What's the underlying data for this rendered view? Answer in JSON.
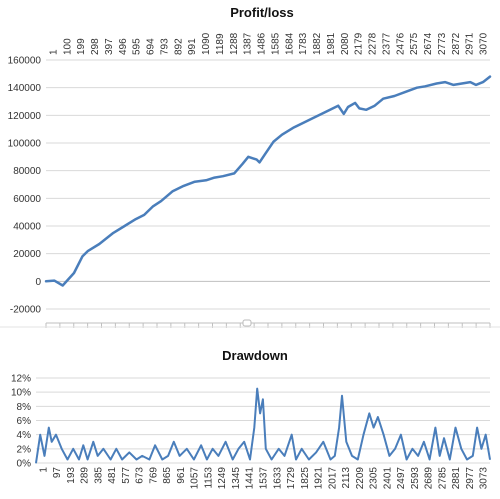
{
  "chart_data": [
    {
      "type": "line",
      "title": "Profit/loss",
      "xlabel": "",
      "ylabel": "",
      "x_range": [
        1,
        3160
      ],
      "ylim": [
        -20000,
        160000
      ],
      "y_ticks": [
        "-20000",
        "0",
        "20000",
        "40000",
        "60000",
        "80000",
        "100000",
        "120000",
        "140000",
        "160000"
      ],
      "y_tick_values": [
        -20000,
        0,
        20000,
        40000,
        60000,
        80000,
        100000,
        120000,
        140000,
        160000
      ],
      "x_ticks": [
        "1",
        "100",
        "199",
        "298",
        "397",
        "496",
        "595",
        "694",
        "793",
        "892",
        "991",
        "1090",
        "1189",
        "1288",
        "1387",
        "1486",
        "1585",
        "1684",
        "1783",
        "1882",
        "1981",
        "2080",
        "2179",
        "2278",
        "2377",
        "2476",
        "2575",
        "2674",
        "2773",
        "2872",
        "2971",
        "3070"
      ],
      "x_tick_position": "top",
      "grid": true,
      "series": [
        {
          "color": "#4a7ebb",
          "x": [
            1,
            60,
            120,
            200,
            260,
            300,
            380,
            480,
            560,
            640,
            700,
            760,
            820,
            900,
            980,
            1060,
            1140,
            1200,
            1260,
            1340,
            1400,
            1440,
            1500,
            1520,
            1560,
            1620,
            1680,
            1760,
            1840,
            1900,
            2000,
            2080,
            2120,
            2150,
            2200,
            2230,
            2280,
            2340,
            2400,
            2480,
            2560,
            2640,
            2700,
            2780,
            2840,
            2900,
            2960,
            3020,
            3060,
            3110,
            3160
          ],
          "values": [
            0,
            500,
            -3000,
            6000,
            18000,
            22000,
            27000,
            35000,
            40000,
            45000,
            48000,
            54000,
            58000,
            65000,
            69000,
            72000,
            73000,
            75000,
            76000,
            78000,
            85000,
            90000,
            88000,
            86000,
            92000,
            101000,
            106000,
            111000,
            115000,
            118000,
            123000,
            127000,
            121000,
            126000,
            129000,
            125000,
            124000,
            127000,
            132000,
            134000,
            137000,
            140000,
            141000,
            143000,
            144000,
            142000,
            143000,
            144000,
            142000,
            144000,
            148000
          ]
        }
      ]
    },
    {
      "type": "area",
      "title": "Drawdown",
      "xlabel": "",
      "ylabel": "",
      "x_range": [
        1,
        3160
      ],
      "ylim": [
        0,
        12
      ],
      "y_ticks": [
        "0%",
        "2%",
        "4%",
        "6%",
        "8%",
        "10%",
        "12%"
      ],
      "y_tick_values": [
        0,
        2,
        4,
        6,
        8,
        10,
        12
      ],
      "x_ticks": [
        "1",
        "97",
        "193",
        "289",
        "385",
        "481",
        "577",
        "673",
        "769",
        "865",
        "961",
        "1057",
        "1153",
        "1249",
        "1345",
        "1441",
        "1537",
        "1633",
        "1729",
        "1825",
        "1921",
        "2017",
        "2113",
        "2209",
        "2305",
        "2401",
        "2497",
        "2593",
        "2689",
        "2785",
        "2881",
        "2977",
        "3073"
      ],
      "x_tick_position": "bottom",
      "grid": true,
      "series": [
        {
          "color": "#4a7ebb",
          "x": [
            1,
            30,
            60,
            90,
            110,
            140,
            180,
            220,
            260,
            300,
            330,
            360,
            400,
            430,
            470,
            520,
            560,
            600,
            650,
            700,
            740,
            790,
            830,
            880,
            920,
            960,
            1000,
            1050,
            1100,
            1150,
            1190,
            1230,
            1270,
            1320,
            1370,
            1410,
            1450,
            1490,
            1520,
            1540,
            1560,
            1580,
            1600,
            1640,
            1690,
            1730,
            1780,
            1810,
            1850,
            1900,
            1950,
            2000,
            2050,
            2080,
            2110,
            2130,
            2160,
            2200,
            2240,
            2280,
            2320,
            2350,
            2380,
            2420,
            2460,
            2500,
            2540,
            2580,
            2620,
            2660,
            2700,
            2740,
            2780,
            2810,
            2840,
            2880,
            2920,
            2960,
            3000,
            3040,
            3070,
            3100,
            3130,
            3160
          ],
          "values": [
            0,
            4,
            1,
            5,
            3,
            4,
            2,
            0.5,
            2,
            0.5,
            2.5,
            0.5,
            3,
            1,
            2,
            0.5,
            2,
            0.5,
            1.5,
            0.5,
            1,
            0.5,
            2.5,
            0.5,
            1,
            3,
            1,
            2,
            0.5,
            2.5,
            0.5,
            2,
            1,
            3,
            0.5,
            2,
            3,
            0.5,
            5,
            10.5,
            7,
            9,
            2,
            0.5,
            2,
            1,
            4,
            0.5,
            2,
            0.5,
            1.5,
            3,
            0.5,
            1,
            5,
            9.5,
            3,
            1,
            0.5,
            4,
            7,
            5,
            6.5,
            4,
            1,
            2,
            4,
            0.5,
            2,
            1,
            3,
            0.5,
            5,
            1,
            3.5,
            0.5,
            5,
            2,
            0.5,
            1,
            5,
            2,
            4,
            0.5
          ]
        }
      ]
    }
  ]
}
